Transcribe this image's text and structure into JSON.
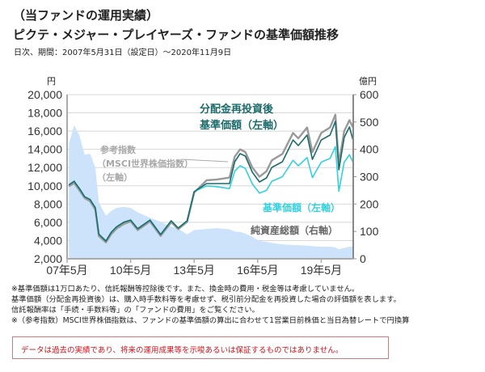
{
  "header": {
    "title": "（当ファンドの運用実績）",
    "subtitle": "ピクテ・メジャー・プレイヤーズ・ファンドの基準価額推移",
    "period": "日次、期間：2007年5月31日（設定日）～2020年11月9日"
  },
  "chart_data": {
    "type": "line",
    "left_axis_unit": "円",
    "right_axis_unit": "億円",
    "ylim_left": [
      2000,
      20000
    ],
    "ylim_right": [
      0,
      600
    ],
    "y_ticks_left": [
      "2,000",
      "4,000",
      "6,000",
      "8,000",
      "10,000",
      "12,000",
      "14,000",
      "16,000",
      "18,000",
      "20,000"
    ],
    "y_ticks_right": [
      "0",
      "100",
      "200",
      "300",
      "400",
      "500",
      "600"
    ],
    "x_ticks": [
      {
        "date": "2007-05",
        "label": "07年5月"
      },
      {
        "date": "2010-05",
        "label": "10年5月"
      },
      {
        "date": "2013-05",
        "label": "13年5月"
      },
      {
        "date": "2016-05",
        "label": "16年5月"
      },
      {
        "date": "2019-05",
        "label": "19年5月"
      }
    ],
    "grid": true,
    "dates": [
      "2007-06",
      "2007-09",
      "2007-12",
      "2008-03",
      "2008-06",
      "2008-09",
      "2008-11",
      "2009-03",
      "2009-06",
      "2009-09",
      "2010-01",
      "2010-05",
      "2010-09",
      "2011-04",
      "2011-10",
      "2012-04",
      "2012-08",
      "2013-01",
      "2013-05",
      "2013-12",
      "2014-06",
      "2015-01",
      "2015-04",
      "2015-07",
      "2015-10",
      "2016-02",
      "2016-06",
      "2016-10",
      "2017-01",
      "2017-07",
      "2018-01",
      "2018-04",
      "2018-09",
      "2018-12",
      "2019-05",
      "2019-10",
      "2020-01",
      "2020-03",
      "2020-06",
      "2020-09",
      "2020-11"
    ],
    "series": [
      {
        "name": "純資産総額（右軸）",
        "axis": "right",
        "kind": "area",
        "color": "#cce3fb",
        "values": [
          420,
          488,
          450,
          380,
          384,
          334,
          207,
          157,
          175,
          186,
          190,
          186,
          170,
          150,
          135,
          118,
          110,
          89,
          105,
          109,
          112,
          108,
          100,
          98,
          92,
          80,
          65,
          62,
          58,
          53,
          50,
          50,
          48,
          46,
          44,
          44,
          42,
          35,
          40,
          44,
          44
        ]
      },
      {
        "name": "参考指数（MSCI世界株価指数）（左軸）",
        "axis": "left",
        "kind": "line",
        "color": "#9a9a9a",
        "values": [
          9950,
          10300,
          9500,
          8650,
          8300,
          7400,
          4500,
          3800,
          4700,
          5300,
          5800,
          6100,
          5150,
          6100,
          4500,
          6000,
          5250,
          6050,
          9250,
          10600,
          10700,
          10900,
          13200,
          14000,
          13700,
          12000,
          11000,
          11600,
          12800,
          13500,
          15800,
          15200,
          16400,
          13700,
          15800,
          16400,
          17800,
          12400,
          16000,
          17200,
          16400
        ]
      },
      {
        "name": "基準価額（左軸）",
        "axis": "left",
        "kind": "line",
        "color": "#33d0e0",
        "values": [
          10100,
          10500,
          9700,
          8800,
          8500,
          7600,
          4700,
          3950,
          4900,
          5500,
          6000,
          6250,
          5300,
          6250,
          4660,
          6170,
          5370,
          6170,
          9360,
          10000,
          9900,
          9700,
          11600,
          12200,
          11900,
          10200,
          9200,
          9500,
          10500,
          11000,
          12800,
          12200,
          13100,
          10900,
          12600,
          13000,
          14300,
          9400,
          12600,
          13400,
          12600
        ]
      },
      {
        "name": "分配金再投資後基準価額（左軸）",
        "axis": "left",
        "kind": "line",
        "color": "#1d6b6b",
        "values": [
          10100,
          10500,
          9700,
          8800,
          8500,
          7600,
          4700,
          3950,
          4900,
          5500,
          6000,
          6250,
          5300,
          6250,
          4660,
          6170,
          5370,
          6170,
          9360,
          10250,
          10250,
          10250,
          12640,
          13530,
          13260,
          11490,
          10420,
          10870,
          12020,
          12640,
          15030,
          14410,
          15570,
          12900,
          15030,
          15570,
          17070,
          11750,
          15300,
          16450,
          15030
        ]
      }
    ],
    "annotations": {
      "reinvested_line1": "分配金再投資後",
      "reinvested_line2": "基準価額（左軸）",
      "nav": "基準価額（左軸）",
      "net_assets": "純資産総額（右軸）",
      "index_line1": "参考指数",
      "index_line2": "（MSCI世界株価指数）",
      "index_line3": "（左軸）"
    }
  },
  "notes": [
    "※基準価額は1万口あたり、信託報酬等控除後です。また、換金時の費用・税金等は考慮していません。",
    "基準価額（分配金再投資後）は、購入時手数料等を考慮せず、税引前分配金を再投資した場合の評価額を表します。",
    "信託報酬率は「手続・手数料等」の「ファンドの費用」をご覧ください。",
    "※（参考指数）MSCI世界株価指数は、ファンドの基準価額の算出に合わせて1営業日前株価と当日為替レートで円換算"
  ],
  "disclaimer": "データは過去の実績であり、将来の運用成果等を示唆あるいは保証するものではありません。"
}
